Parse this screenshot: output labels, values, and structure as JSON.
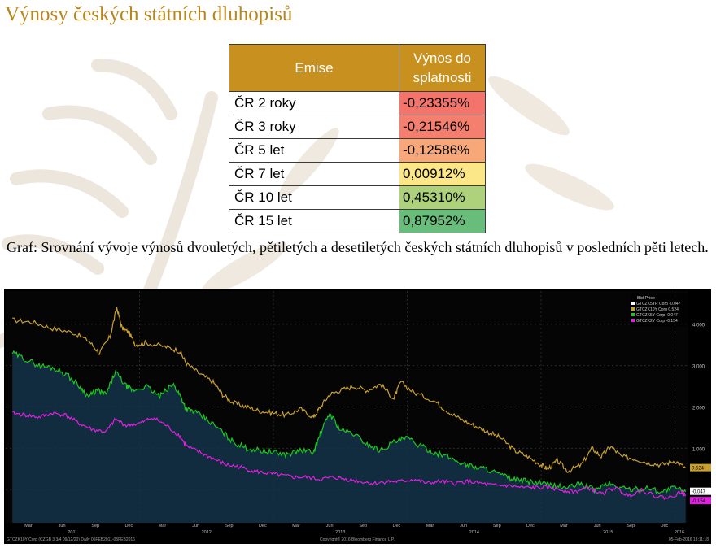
{
  "page": {
    "title": "Výnosy českých státních dluhopisů",
    "caption": "Graf: Srovnání vývoje výnosů dvouletých, pětiletých a desetiletých českých státních dluhopisů v posledních pěti letech."
  },
  "table": {
    "headers": [
      "Emise",
      "Výnos do splatnosti"
    ],
    "rows": [
      {
        "issue": "ČR 2 roky",
        "yield": "-0,23355%",
        "color": "#f4736b"
      },
      {
        "issue": "ČR 3 roky",
        "yield": "-0,21546%",
        "color": "#f47f6e"
      },
      {
        "issue": "ČR 5 let",
        "yield": "-0,12586%",
        "color": "#f8a878"
      },
      {
        "issue": "ČR 7 let",
        "yield": "0,00912%",
        "color": "#fbe688"
      },
      {
        "issue": "ČR 10 let",
        "yield": "0,45310%",
        "color": "#aed17c"
      },
      {
        "issue": "ČR 15 let",
        "yield": "0,87952%",
        "color": "#68bd7a"
      }
    ]
  },
  "chart_data": {
    "type": "line",
    "legend": {
      "title": "Bid Price",
      "placement": "top-right",
      "entries": [
        {
          "label": "GTCZK5YR Corp",
          "value": "-0.047",
          "color": "#ffffff"
        },
        {
          "label": "GTCZK10Y Corp",
          "value": "0.524",
          "color": "#c9a030"
        },
        {
          "label": "GTCZK5Y Corp",
          "value": "-0.047",
          "color": "#1ec81e"
        },
        {
          "label": "GTCZK2Y Corp",
          "value": "-0.154",
          "color": "#e020e0"
        }
      ]
    },
    "ylim": [
      -0.8,
      4.8
    ],
    "yticks": [
      "4.000",
      "3.000",
      "2.000",
      "1.000"
    ],
    "last_labels": [
      {
        "text": "0.524",
        "value": 0.524,
        "color": "#c9a030"
      },
      {
        "text": "-0.047",
        "value": -0.047,
        "color": "#ffffff"
      },
      {
        "text": "-0.154",
        "value": -0.154,
        "color": "#e020e0"
      }
    ],
    "x_months": [
      "Mar",
      "Jun",
      "Sep",
      "Dec",
      "Mar",
      "Jun",
      "Sep",
      "Dec",
      "Mar",
      "Jun",
      "Sep",
      "Dec",
      "Mar",
      "Jun",
      "Sep",
      "Dec",
      "Mar",
      "Jun",
      "Sep",
      "Dec"
    ],
    "x_years": [
      "2011",
      "2012",
      "2013",
      "2014",
      "2015",
      "2016"
    ],
    "footer": {
      "left": "GTCZK10Y Corp (CZGB 3 3/4 09/12/20)  Daily 06FEB2011-05FEB2016",
      "center": "Copyright® 2016 Bloomberg Finance L.P.",
      "right": "05-Feb-2016 13:11:18"
    },
    "series": [
      {
        "name": "GTCZK10Y Corp",
        "color": "#c9a030",
        "x": [
          2011.05,
          2011.2,
          2011.35,
          2011.5,
          2011.62,
          2011.7,
          2011.78,
          2011.83,
          2011.87,
          2011.92,
          2011.97,
          2012.05,
          2012.2,
          2012.3,
          2012.35,
          2012.45,
          2012.55,
          2012.62,
          2012.7,
          2012.8,
          2012.9,
          2013.0,
          2013.1,
          2013.2,
          2013.3,
          2013.35,
          2013.42,
          2013.5,
          2013.6,
          2013.7,
          2013.8,
          2013.9,
          2013.95,
          2014.05,
          2014.2,
          2014.3,
          2014.4,
          2014.5,
          2014.6,
          2014.7,
          2014.8,
          2014.9,
          2015.0,
          2015.05,
          2015.12,
          2015.2,
          2015.3,
          2015.38,
          2015.45,
          2015.52,
          2015.6,
          2015.7,
          2015.8,
          2015.9,
          2016.0,
          2016.08
        ],
        "y": [
          4.1,
          4.05,
          3.9,
          3.8,
          3.6,
          3.3,
          3.7,
          4.4,
          3.9,
          3.8,
          3.5,
          3.55,
          3.45,
          3.35,
          3.05,
          2.8,
          2.6,
          2.3,
          2.1,
          2.0,
          1.9,
          1.85,
          1.8,
          1.95,
          1.75,
          2.0,
          2.3,
          2.4,
          2.5,
          2.4,
          2.55,
          2.2,
          2.6,
          2.35,
          2.15,
          1.9,
          1.7,
          1.55,
          1.4,
          1.25,
          0.95,
          0.8,
          0.6,
          0.5,
          0.7,
          0.45,
          0.6,
          1.0,
          0.8,
          1.05,
          0.8,
          0.75,
          0.65,
          0.6,
          0.7,
          0.52
        ]
      },
      {
        "name": "GTCZK5Y Corp",
        "color": "#1ec81e",
        "x": [
          2011.05,
          2011.15,
          2011.25,
          2011.35,
          2011.45,
          2011.55,
          2011.62,
          2011.68,
          2011.75,
          2011.82,
          2011.9,
          2011.95,
          2012.05,
          2012.15,
          2012.25,
          2012.3,
          2012.35,
          2012.4,
          2012.5,
          2012.6,
          2012.7,
          2012.8,
          2012.9,
          2013.0,
          2013.1,
          2013.2,
          2013.3,
          2013.35,
          2013.42,
          2013.5,
          2013.6,
          2013.7,
          2013.8,
          2013.9,
          2014.0,
          2014.1,
          2014.2,
          2014.3,
          2014.4,
          2014.5,
          2014.6,
          2014.7,
          2014.8,
          2014.9,
          2015.0,
          2015.1,
          2015.2,
          2015.3,
          2015.4,
          2015.5,
          2015.6,
          2015.7,
          2015.8,
          2015.9,
          2016.0,
          2016.08
        ],
        "y": [
          3.3,
          3.15,
          3.0,
          2.95,
          2.8,
          2.5,
          2.25,
          2.4,
          2.3,
          2.85,
          2.5,
          2.4,
          2.5,
          2.25,
          2.55,
          2.3,
          1.95,
          1.9,
          1.7,
          1.45,
          1.15,
          1.0,
          0.95,
          0.9,
          0.85,
          0.95,
          0.9,
          1.35,
          1.85,
          1.45,
          1.35,
          1.1,
          0.95,
          1.15,
          1.25,
          1.05,
          0.9,
          0.8,
          0.65,
          0.55,
          0.5,
          0.35,
          0.25,
          0.2,
          0.15,
          0.1,
          0.05,
          0.15,
          0.0,
          0.15,
          0.05,
          0.0,
          0.05,
          -0.05,
          0.05,
          -0.047
        ]
      },
      {
        "name": "GTCZK2Y Corp",
        "color": "#e020e0",
        "x": [
          2011.05,
          2011.15,
          2011.25,
          2011.35,
          2011.45,
          2011.55,
          2011.65,
          2011.75,
          2011.82,
          2011.9,
          2012.0,
          2012.1,
          2012.2,
          2012.3,
          2012.35,
          2012.45,
          2012.55,
          2012.65,
          2012.75,
          2012.85,
          2012.95,
          2013.05,
          2013.15,
          2013.25,
          2013.35,
          2013.45,
          2013.55,
          2013.65,
          2013.75,
          2013.85,
          2013.95,
          2014.05,
          2014.15,
          2014.25,
          2014.35,
          2014.45,
          2014.55,
          2014.65,
          2014.75,
          2014.85,
          2014.95,
          2015.05,
          2015.15,
          2015.25,
          2015.35,
          2015.45,
          2015.55,
          2015.65,
          2015.75,
          2015.85,
          2015.95,
          2016.05,
          2016.08
        ],
        "y": [
          1.85,
          1.8,
          1.75,
          1.85,
          1.8,
          1.6,
          1.45,
          1.4,
          1.7,
          1.55,
          1.6,
          1.75,
          1.55,
          1.3,
          1.05,
          0.9,
          0.75,
          0.6,
          0.55,
          0.45,
          0.4,
          0.35,
          0.3,
          0.3,
          0.25,
          0.3,
          0.25,
          0.2,
          0.15,
          0.2,
          0.2,
          0.25,
          0.15,
          0.2,
          0.15,
          0.2,
          0.15,
          0.1,
          0.1,
          0.05,
          0.05,
          0.05,
          0.0,
          -0.05,
          0.05,
          -0.1,
          0.05,
          -0.15,
          0.0,
          -0.15,
          -0.2,
          -0.05,
          -0.154
        ]
      }
    ]
  }
}
